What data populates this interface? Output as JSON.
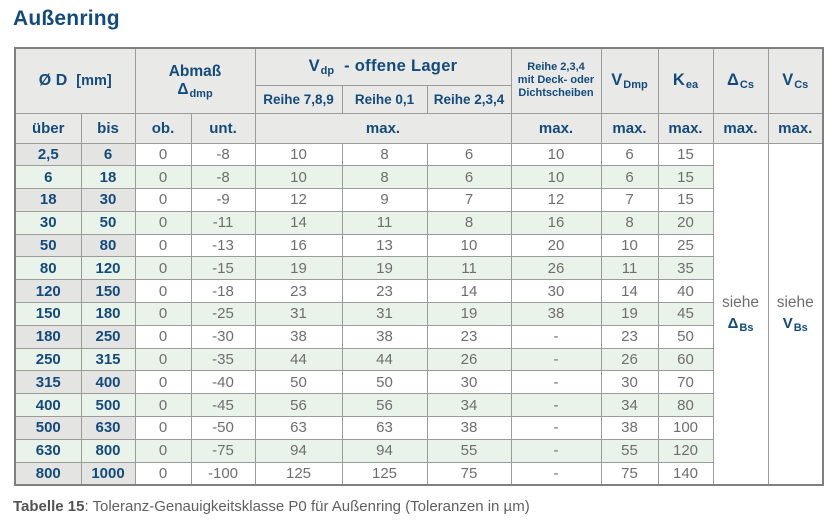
{
  "title": "Außenring",
  "table": {
    "header": {
      "diameter": {
        "label": "Ø D",
        "unit": "[mm]"
      },
      "abmass": {
        "line1": "Abmaß",
        "base": "Δ",
        "sub": "dmp"
      },
      "vdp_group": {
        "base": "V",
        "sub": "dp",
        "rest": "-  offene Lager"
      },
      "reihe_789": "Reihe 7,8,9",
      "reihe_01": "Reihe 0,1",
      "reihe_234": "Reihe 2,3,4",
      "deck": {
        "line1": "Reihe 2,3,4",
        "line2": "mit Deck- oder",
        "line3": "Dichtscheiben"
      },
      "vdmp": {
        "base": "V",
        "sub": "Dmp"
      },
      "kea": {
        "base": "K",
        "sub": "ea"
      },
      "delta_cs": {
        "base": "Δ",
        "sub": "Cs"
      },
      "vcs": {
        "base": "V",
        "sub": "Cs"
      },
      "ueber": "über",
      "bis": "bis",
      "ob": "ob.",
      "unt": "unt.",
      "max": "max."
    },
    "see_delta_bs": {
      "word": "siehe",
      "base": "Δ",
      "sub": "Bs"
    },
    "see_v_bs": {
      "word": "siehe",
      "base": "V",
      "sub": "Bs"
    },
    "columns": [
      "über",
      "bis",
      "ob.",
      "unt.",
      "Reihe 7,8,9",
      "Reihe 0,1",
      "Reihe 2,3,4",
      "Reihe 2,3,4 mit Deck- oder Dichtscheiben",
      "VDmp",
      "Kea"
    ],
    "rows": [
      [
        "2,5",
        "6",
        "0",
        "-8",
        "10",
        "8",
        "6",
        "10",
        "6",
        "15"
      ],
      [
        "6",
        "18",
        "0",
        "-8",
        "10",
        "8",
        "6",
        "10",
        "6",
        "15"
      ],
      [
        "18",
        "30",
        "0",
        "-9",
        "12",
        "9",
        "7",
        "12",
        "7",
        "15"
      ],
      [
        "30",
        "50",
        "0",
        "-11",
        "14",
        "11",
        "8",
        "16",
        "8",
        "20"
      ],
      [
        "50",
        "80",
        "0",
        "-13",
        "16",
        "13",
        "10",
        "20",
        "10",
        "25"
      ],
      [
        "80",
        "120",
        "0",
        "-15",
        "19",
        "19",
        "11",
        "26",
        "11",
        "35"
      ],
      [
        "120",
        "150",
        "0",
        "-18",
        "23",
        "23",
        "14",
        "30",
        "14",
        "40"
      ],
      [
        "150",
        "180",
        "0",
        "-25",
        "31",
        "31",
        "19",
        "38",
        "19",
        "45"
      ],
      [
        "180",
        "250",
        "0",
        "-30",
        "38",
        "38",
        "23",
        "-",
        "23",
        "50"
      ],
      [
        "250",
        "315",
        "0",
        "-35",
        "44",
        "44",
        "26",
        "-",
        "26",
        "60"
      ],
      [
        "315",
        "400",
        "0",
        "-40",
        "50",
        "50",
        "30",
        "-",
        "30",
        "70"
      ],
      [
        "400",
        "500",
        "0",
        "-45",
        "56",
        "56",
        "34",
        "-",
        "34",
        "80"
      ],
      [
        "500",
        "630",
        "0",
        "-50",
        "63",
        "63",
        "38",
        "-",
        "38",
        "100"
      ],
      [
        "630",
        "800",
        "0",
        "-75",
        "94",
        "94",
        "55",
        "-",
        "55",
        "120"
      ],
      [
        "800",
        "1000",
        "0",
        "-100",
        "125",
        "125",
        "75",
        "-",
        "75",
        "140"
      ]
    ]
  },
  "caption": {
    "bold": "Tabelle 15",
    "text": ": Toleranz-Genauigkeitsklasse P0 für Außenring (Toleranzen in µm)"
  },
  "colors": {
    "accent_blue": "#134b7d",
    "header_bg": "#e9e9e7",
    "diameter_col_bg": "#e4e4e2",
    "row_green": "#eaf3ea",
    "value_gray": "#6e6e6e",
    "border_gray": "#9b9b9b"
  }
}
